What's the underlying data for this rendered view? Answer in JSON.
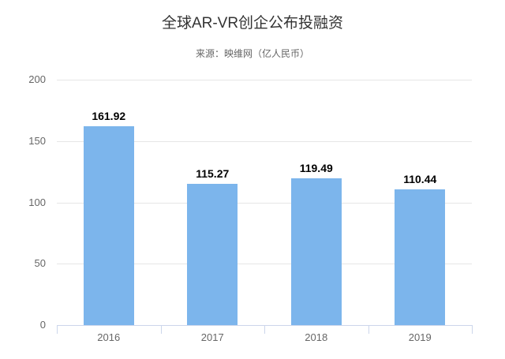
{
  "chart_data": {
    "type": "bar",
    "title": "全球AR-VR创企公布投融资",
    "subtitle": "来源：映维网（亿人民币）",
    "categories": [
      "2016",
      "2017",
      "2018",
      "2019"
    ],
    "values": [
      161.92,
      115.27,
      119.49,
      110.44
    ],
    "value_labels": [
      "161.92",
      "115.27",
      "119.49",
      "110.44"
    ],
    "xlabel": "",
    "ylabel": "",
    "ylim": [
      0,
      200
    ],
    "yticks": [
      0,
      50,
      100,
      150,
      200
    ],
    "ytick_labels": [
      "0",
      "50",
      "100",
      "150",
      "200"
    ],
    "grid": true,
    "legend": "none"
  },
  "colors": {
    "bar_fill": "#7cb5ec",
    "grid_line": "#e6e6e6",
    "axis_line": "#ccd6eb",
    "title_text": "#333333",
    "subtitle_text": "#666666",
    "axis_label_text": "#666666",
    "data_label_text": "#000000",
    "background": "#ffffff"
  }
}
